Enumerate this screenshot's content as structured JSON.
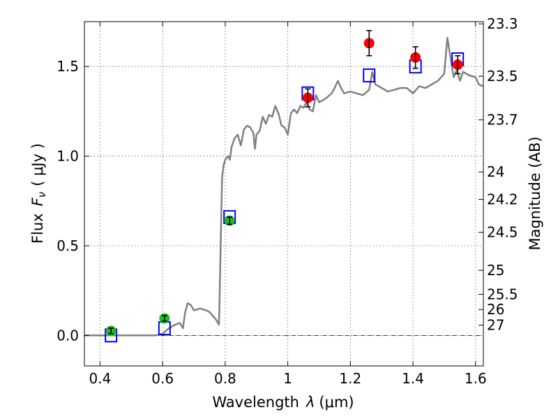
{
  "chart_data": {
    "type": "scatter",
    "xlabel_text": "Wavelength",
    "xlabel_symbol": "λ",
    "xlabel_unit": "(μm)",
    "ylabel_text": "Flux",
    "ylabel_symbol": "F",
    "ylabel_subscript": "ν",
    "ylabel_unit": "( μJy )",
    "y2label": "Magnitude (AB)",
    "xlim": [
      0.35,
      1.625
    ],
    "ylim": [
      -0.17,
      1.75
    ],
    "grid": true,
    "xticks": [
      {
        "value": 0.4,
        "label": "0.4"
      },
      {
        "value": 0.6,
        "label": "0.6"
      },
      {
        "value": 0.8,
        "label": "0.8"
      },
      {
        "value": 1.0,
        "label": "1"
      },
      {
        "value": 1.2,
        "label": "1.2"
      },
      {
        "value": 1.4,
        "label": "1.4"
      },
      {
        "value": 1.6,
        "label": "1.6"
      }
    ],
    "yticks": [
      {
        "value": 0.0,
        "label": "0.0"
      },
      {
        "value": 0.5,
        "label": "0.5"
      },
      {
        "value": 1.0,
        "label": "1.0"
      },
      {
        "value": 1.5,
        "label": "1.5"
      }
    ],
    "y2ticks": [
      {
        "mag": 23.3,
        "label": "23.3"
      },
      {
        "mag": 23.5,
        "label": "23.5"
      },
      {
        "mag": 23.7,
        "label": "23.7"
      },
      {
        "mag": 24,
        "label": "24"
      },
      {
        "mag": 24.2,
        "label": "24.2"
      },
      {
        "mag": 24.5,
        "label": "24.5"
      },
      {
        "mag": 25,
        "label": "25"
      },
      {
        "mag": 25.5,
        "label": "25.5"
      },
      {
        "mag": 26,
        "label": "26"
      },
      {
        "mag": 27,
        "label": "27"
      }
    ],
    "colors": {
      "model": "#808080",
      "green_points": "#22bb22",
      "red_points": "#ff0000",
      "model_squares": "#0000ff",
      "zero_line": "#000000"
    },
    "series": [
      {
        "kind": "line",
        "points": [
          [
            0.35,
            0.0
          ],
          [
            0.58,
            0.0
          ],
          [
            0.6,
            0.01
          ],
          [
            0.62,
            0.04
          ],
          [
            0.64,
            0.06
          ],
          [
            0.655,
            0.07
          ],
          [
            0.665,
            0.04
          ],
          [
            0.672,
            0.13
          ],
          [
            0.68,
            0.18
          ],
          [
            0.69,
            0.17
          ],
          [
            0.7,
            0.14
          ],
          [
            0.72,
            0.15
          ],
          [
            0.74,
            0.14
          ],
          [
            0.75,
            0.13
          ],
          [
            0.76,
            0.11
          ],
          [
            0.77,
            0.09
          ],
          [
            0.78,
            0.06
          ],
          [
            0.782,
            0.2
          ],
          [
            0.786,
            0.55
          ],
          [
            0.79,
            0.88
          ],
          [
            0.795,
            0.95
          ],
          [
            0.8,
            0.98
          ],
          [
            0.81,
            1.0
          ],
          [
            0.815,
            0.98
          ],
          [
            0.82,
            1.05
          ],
          [
            0.83,
            1.1
          ],
          [
            0.84,
            1.12
          ],
          [
            0.85,
            1.06
          ],
          [
            0.86,
            1.15
          ],
          [
            0.87,
            1.17
          ],
          [
            0.88,
            1.16
          ],
          [
            0.89,
            1.13
          ],
          [
            0.895,
            1.04
          ],
          [
            0.9,
            1.12
          ],
          [
            0.91,
            1.14
          ],
          [
            0.92,
            1.22
          ],
          [
            0.93,
            1.18
          ],
          [
            0.94,
            1.23
          ],
          [
            0.95,
            1.22
          ],
          [
            0.96,
            1.28
          ],
          [
            0.97,
            1.24
          ],
          [
            0.98,
            1.17
          ],
          [
            0.99,
            1.16
          ],
          [
            1.0,
            1.12
          ],
          [
            1.01,
            1.24
          ],
          [
            1.02,
            1.26
          ],
          [
            1.03,
            1.24
          ],
          [
            1.04,
            1.28
          ],
          [
            1.05,
            1.27
          ],
          [
            1.06,
            1.3
          ],
          [
            1.07,
            1.26
          ],
          [
            1.08,
            1.25
          ],
          [
            1.09,
            1.34
          ],
          [
            1.1,
            1.3
          ],
          [
            1.12,
            1.32
          ],
          [
            1.14,
            1.35
          ],
          [
            1.15,
            1.38
          ],
          [
            1.16,
            1.42
          ],
          [
            1.17,
            1.38
          ],
          [
            1.18,
            1.35
          ],
          [
            1.2,
            1.36
          ],
          [
            1.22,
            1.35
          ],
          [
            1.24,
            1.34
          ],
          [
            1.26,
            1.37
          ],
          [
            1.27,
            1.47
          ],
          [
            1.28,
            1.4
          ],
          [
            1.3,
            1.38
          ],
          [
            1.32,
            1.36
          ],
          [
            1.34,
            1.37
          ],
          [
            1.36,
            1.38
          ],
          [
            1.38,
            1.38
          ],
          [
            1.4,
            1.35
          ],
          [
            1.42,
            1.39
          ],
          [
            1.44,
            1.38
          ],
          [
            1.46,
            1.4
          ],
          [
            1.48,
            1.42
          ],
          [
            1.5,
            1.46
          ],
          [
            1.51,
            1.66
          ],
          [
            1.52,
            1.55
          ],
          [
            1.53,
            1.44
          ],
          [
            1.54,
            1.48
          ],
          [
            1.55,
            1.42
          ],
          [
            1.56,
            1.47
          ],
          [
            1.58,
            1.45
          ],
          [
            1.6,
            1.44
          ],
          [
            1.61,
            1.4
          ],
          [
            1.625,
            1.39
          ]
        ]
      },
      {
        "kind": "points",
        "marker": "circle",
        "points": [
          {
            "x": 0.435,
            "y": 0.025,
            "err": 0.015
          },
          {
            "x": 0.606,
            "y": 0.095,
            "err": 0.015
          },
          {
            "x": 0.814,
            "y": 0.64,
            "err": 0.02
          }
        ]
      },
      {
        "kind": "points",
        "marker": "circle",
        "points": [
          {
            "x": 1.064,
            "y": 1.325,
            "err": 0.05
          },
          {
            "x": 1.26,
            "y": 1.63,
            "err": 0.07
          },
          {
            "x": 1.408,
            "y": 1.55,
            "err": 0.06
          },
          {
            "x": 1.543,
            "y": 1.51,
            "err": 0.05
          }
        ]
      },
      {
        "kind": "points",
        "marker": "square",
        "points": [
          {
            "x": 0.435,
            "y": 0.0
          },
          {
            "x": 0.606,
            "y": 0.04
          },
          {
            "x": 0.814,
            "y": 0.66
          },
          {
            "x": 1.064,
            "y": 1.35
          },
          {
            "x": 1.26,
            "y": 1.45
          },
          {
            "x": 1.408,
            "y": 1.5
          },
          {
            "x": 1.543,
            "y": 1.54
          }
        ]
      }
    ]
  }
}
